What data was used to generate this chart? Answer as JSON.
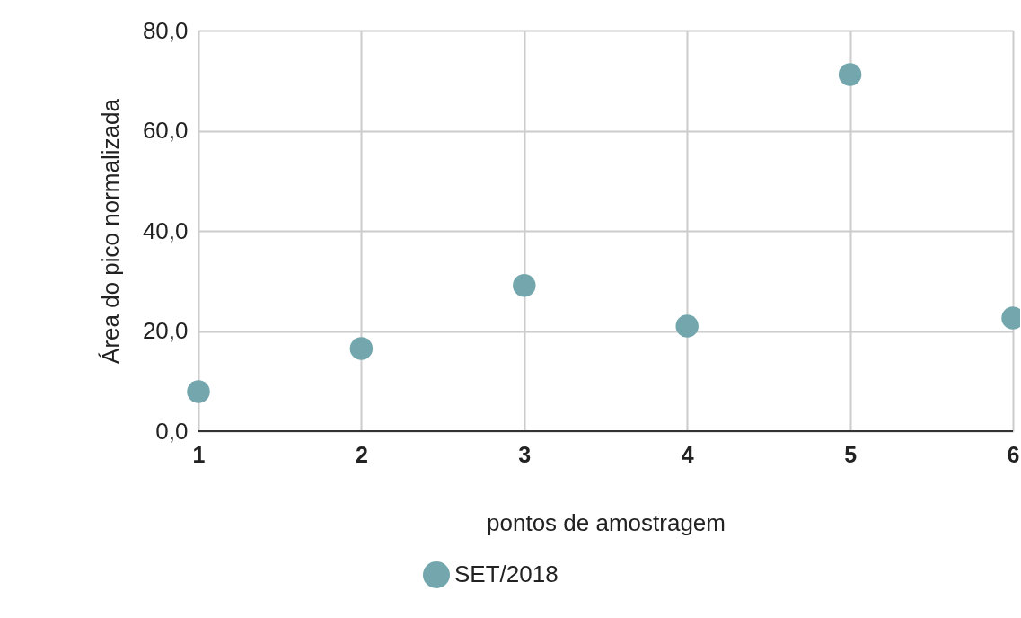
{
  "chart_data": {
    "type": "scatter",
    "xlabel": "pontos de amostragem",
    "ylabel": "Área do pico normalizada",
    "x": [
      1,
      2,
      3,
      4,
      5,
      6
    ],
    "series": [
      {
        "name": "SET/2018",
        "color": "#74a7ad",
        "values": [
          7.9,
          16.5,
          29.1,
          21.0,
          71.2,
          22.6
        ]
      }
    ],
    "xlim": [
      1,
      6
    ],
    "xticks": [
      1,
      2,
      3,
      4,
      5,
      6
    ],
    "ylim": [
      0,
      80
    ],
    "yticks": [
      {
        "value": 0,
        "label": "0,0"
      },
      {
        "value": 20,
        "label": "20,0"
      },
      {
        "value": 40,
        "label": "40,0"
      },
      {
        "value": 60,
        "label": "60,0"
      },
      {
        "value": 80,
        "label": "80,0"
      }
    ],
    "grid": true,
    "legend": "bottom",
    "marker": "circle"
  }
}
